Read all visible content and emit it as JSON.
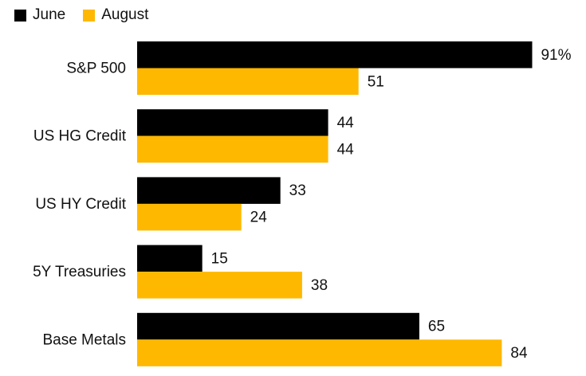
{
  "chart_data": {
    "type": "bar",
    "orientation": "horizontal",
    "categories": [
      "S&P 500",
      "US HG Credit",
      "US HY Credit",
      "5Y Treasuries",
      "Base Metals"
    ],
    "series": [
      {
        "name": "June",
        "values": [
          91,
          44,
          33,
          15,
          65
        ],
        "color": "#000000"
      },
      {
        "name": "August",
        "values": [
          51,
          44,
          24,
          38,
          84
        ],
        "color": "#FFB800"
      }
    ],
    "data_labels": {
      "June": [
        "91%",
        "44",
        "33",
        "15",
        "65"
      ],
      "August": [
        "51",
        "44",
        "24",
        "38",
        "84"
      ]
    },
    "title": "",
    "xlabel": "",
    "ylabel": "",
    "xlim": [
      0,
      100
    ],
    "grid": false,
    "legend_position": "top-left"
  }
}
